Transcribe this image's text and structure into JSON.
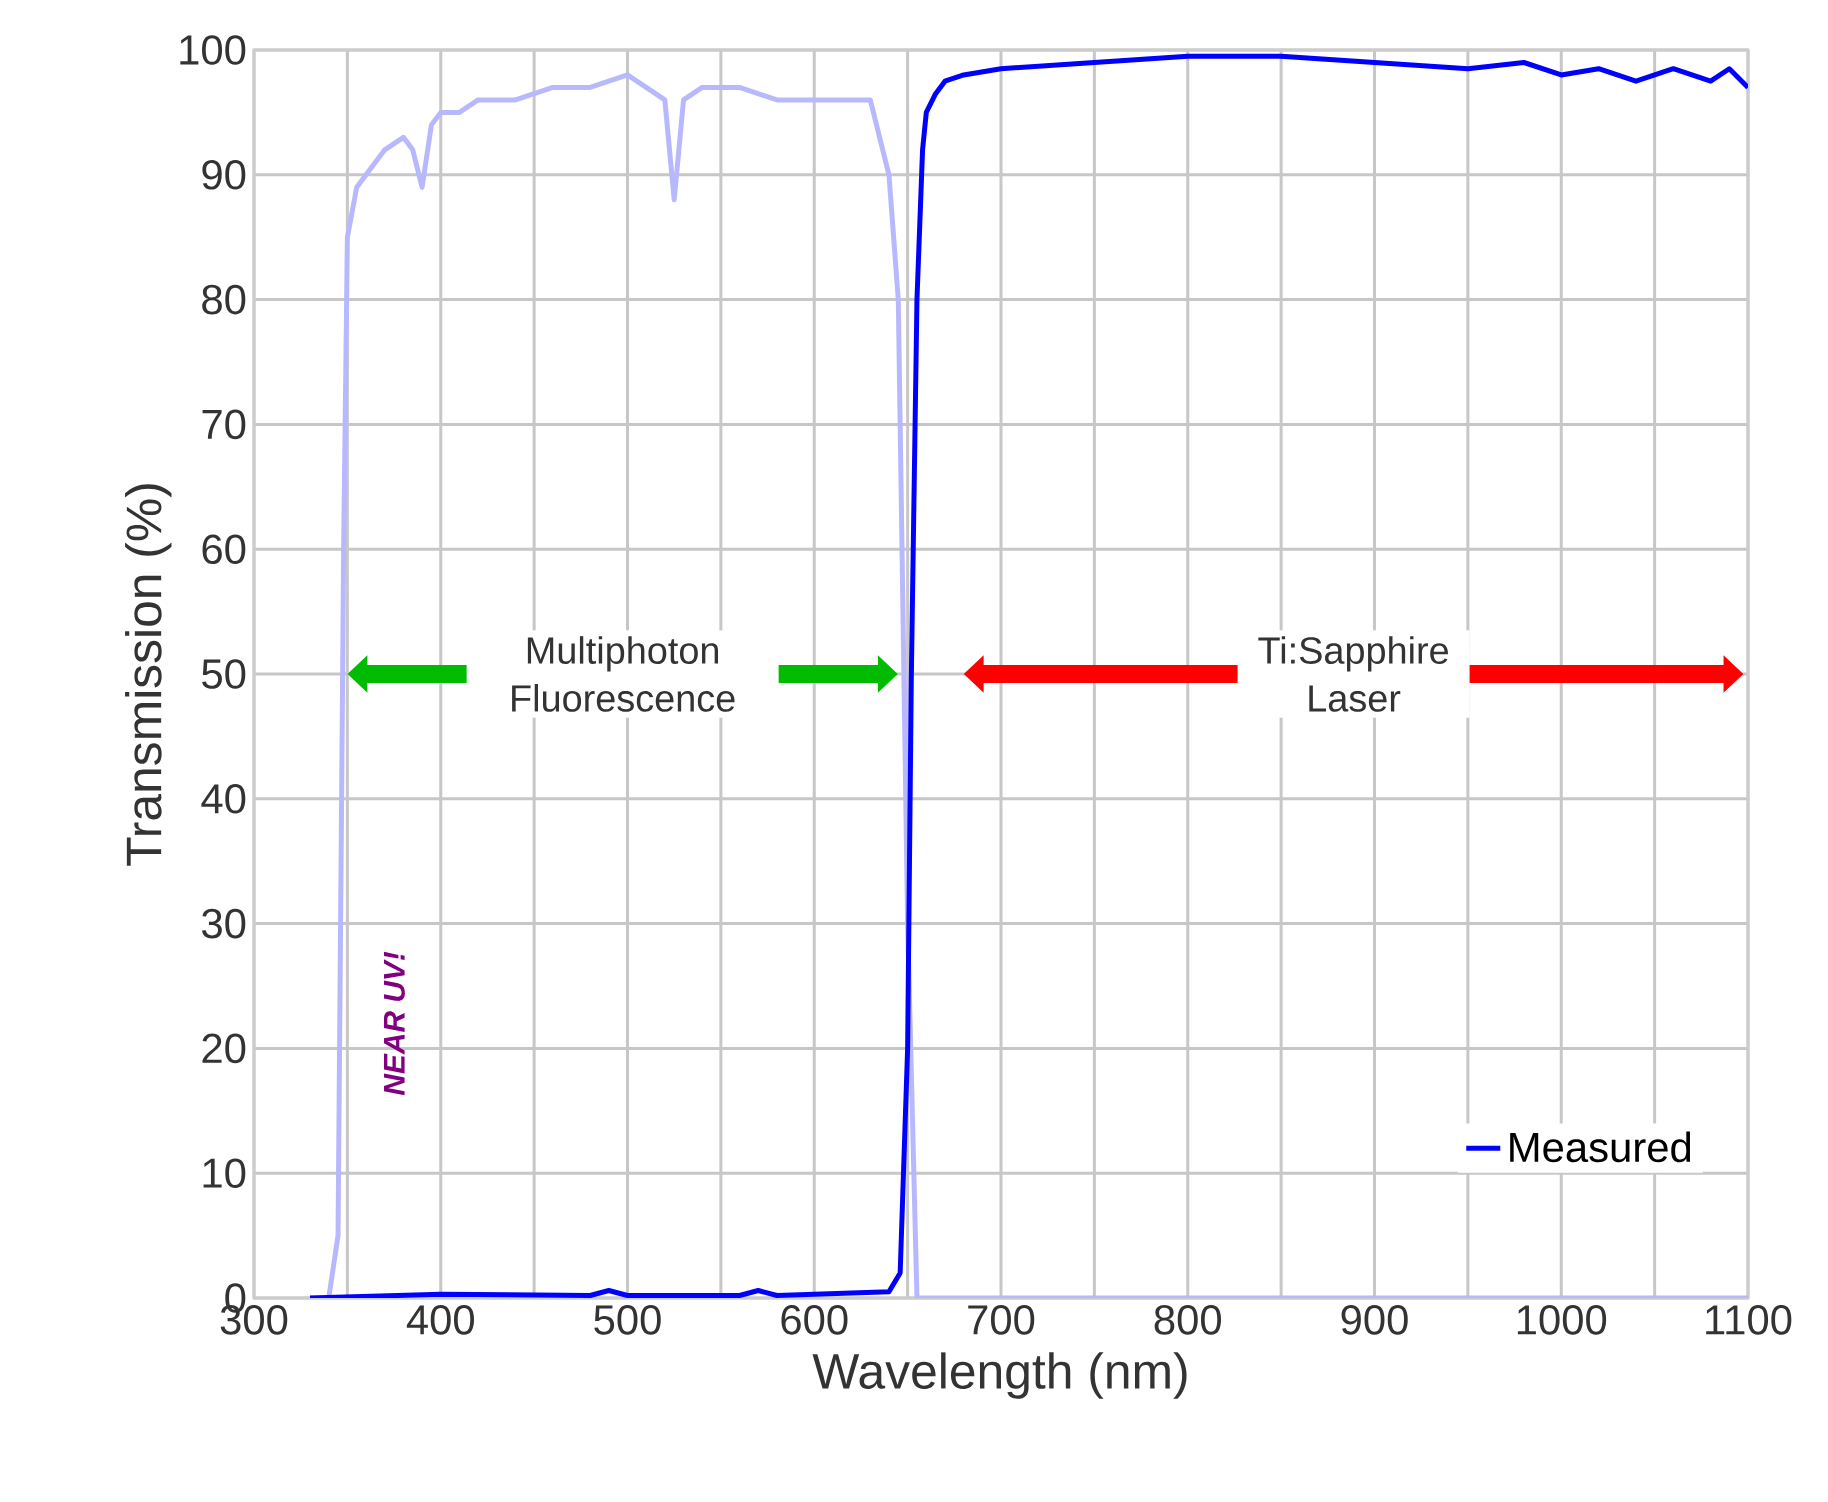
{
  "chart_data": {
    "type": "line",
    "xlabel": "Wavelength (nm)",
    "ylabel": "Transmission (%)",
    "xlim": [
      300,
      1100
    ],
    "ylim": [
      0,
      100
    ],
    "xticks": [
      300,
      400,
      500,
      600,
      700,
      800,
      900,
      1000,
      1100
    ],
    "yticks": [
      0,
      10,
      20,
      30,
      40,
      50,
      60,
      70,
      80,
      90,
      100
    ],
    "grid": true,
    "legend": "bottom right",
    "series": [
      {
        "color": "#b8b8ff",
        "x": [
          330,
          340,
          345,
          348,
          350,
          355,
          360,
          370,
          380,
          385,
          390,
          395,
          400,
          410,
          420,
          440,
          460,
          480,
          500,
          510,
          520,
          525,
          530,
          540,
          560,
          580,
          600,
          620,
          630,
          635,
          640,
          645,
          650,
          655,
          660,
          700,
          800,
          900,
          1000,
          1100
        ],
        "values": [
          0,
          0,
          5,
          60,
          85,
          89,
          90,
          92,
          93,
          92,
          89,
          94,
          95,
          95,
          96,
          96,
          97,
          97,
          98,
          97,
          96,
          88,
          96,
          97,
          97,
          96,
          96,
          96,
          96,
          93,
          90,
          80,
          30,
          0,
          0,
          0,
          0,
          0,
          0,
          0
        ]
      },
      {
        "name": "Measured",
        "color": "#0000ff",
        "x": [
          330,
          400,
          480,
          490,
          500,
          560,
          570,
          580,
          640,
          646,
          650,
          652,
          655,
          658,
          660,
          665,
          670,
          680,
          700,
          750,
          800,
          850,
          900,
          950,
          980,
          1000,
          1020,
          1040,
          1060,
          1080,
          1090,
          1100
        ],
        "values": [
          0,
          0.3,
          0.2,
          0.6,
          0.2,
          0.2,
          0.6,
          0.2,
          0.5,
          2,
          20,
          50,
          80,
          92,
          95,
          96.5,
          97.5,
          98,
          98.5,
          99,
          99.5,
          99.5,
          99,
          98.5,
          99,
          98,
          98.5,
          97.5,
          98.5,
          97.5,
          98.5,
          97
        ]
      }
    ],
    "annotations": [
      "Multiphoton Fluorescence",
      "Ti:Sapphire Laser",
      "NEAR UV!"
    ]
  }
}
